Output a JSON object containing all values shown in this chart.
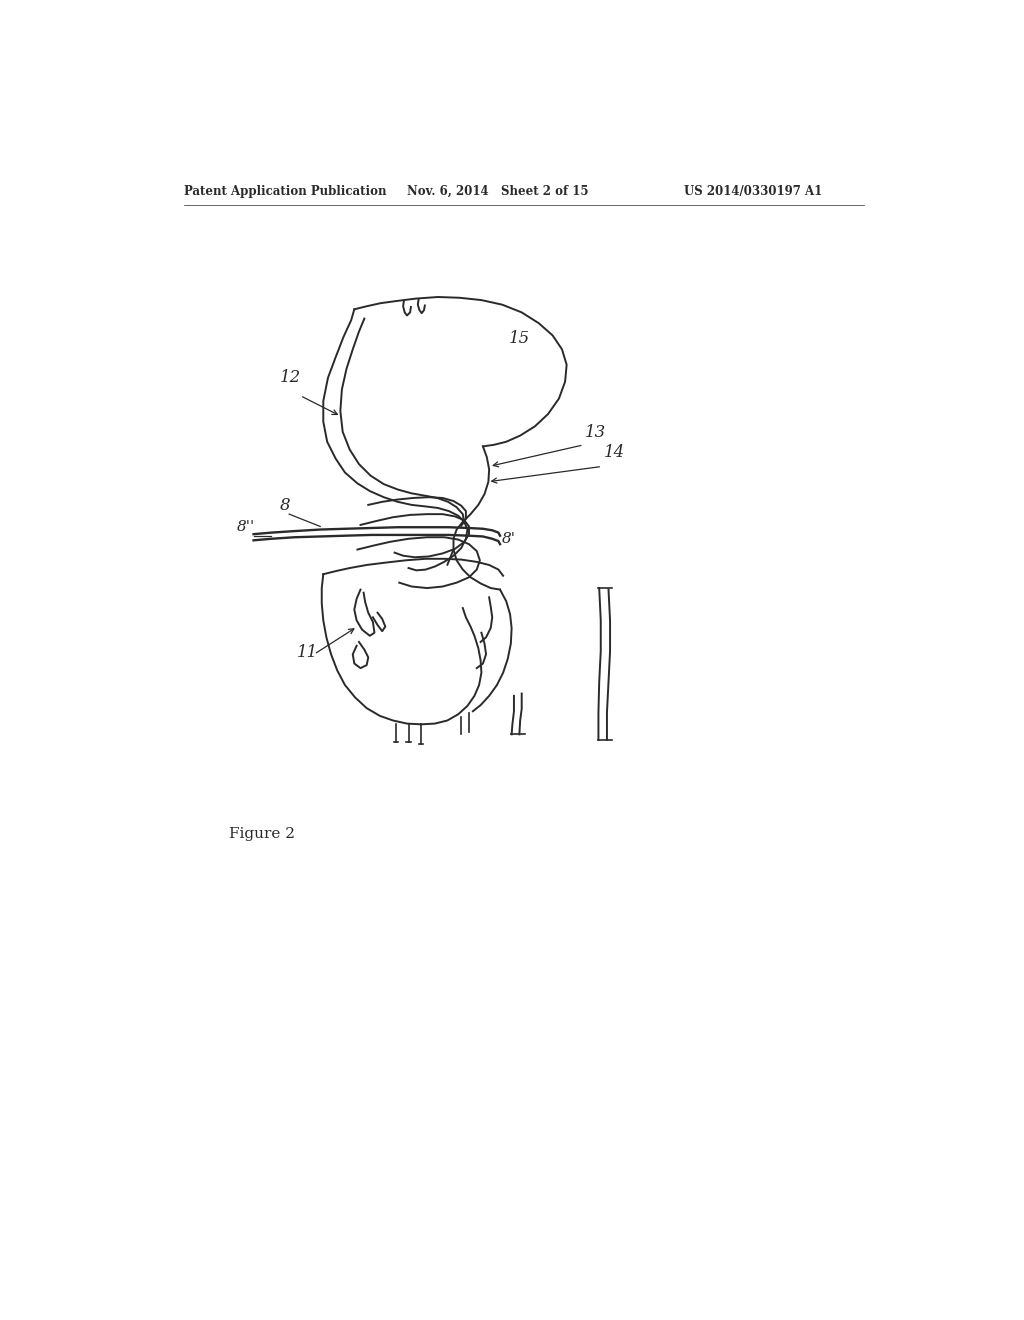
{
  "background_color": "#ffffff",
  "line_color": "#2a2a2a",
  "text_color": "#222222",
  "header_left": "Patent Application Publication",
  "header_mid": "Nov. 6, 2014   Sheet 2 of 15",
  "header_right": "US 2014/0330197 A1",
  "figure_label": "Figure 2",
  "figsize": [
    10.24,
    13.2
  ],
  "dpi": 100
}
